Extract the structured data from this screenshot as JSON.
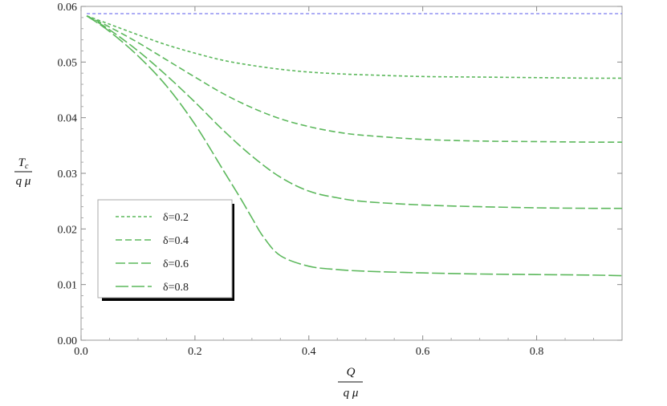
{
  "chart_data": {
    "type": "line",
    "xlabel": {
      "numerator": "Q",
      "denominator": "q μ"
    },
    "ylabel": {
      "numerator": "T",
      "subscript": "c",
      "denominator": "q μ"
    },
    "xlim": [
      0,
      0.95
    ],
    "ylim": [
      0,
      0.06
    ],
    "xticks": [
      "0.0",
      "0.2",
      "0.4",
      "0.6",
      "0.8"
    ],
    "yticks": [
      "0.00",
      "0.01",
      "0.02",
      "0.03",
      "0.04",
      "0.05",
      "0.06"
    ],
    "grid": false,
    "legend": "lower-left",
    "reference_line": {
      "y": 0.0587,
      "color": "#7b7bef"
    },
    "series_color": "#5cb85c",
    "series": [
      {
        "name": "δ=0.2",
        "dash": "4,3",
        "x": [
          0.01,
          0.05,
          0.1,
          0.15,
          0.2,
          0.25,
          0.3,
          0.35,
          0.4,
          0.45,
          0.5,
          0.6,
          0.7,
          0.8,
          0.9,
          0.95
        ],
        "y": [
          0.0583,
          0.0568,
          0.0549,
          0.0531,
          0.0516,
          0.0503,
          0.0494,
          0.0487,
          0.0482,
          0.0479,
          0.0477,
          0.0474,
          0.0473,
          0.0472,
          0.0471,
          0.0471
        ]
      },
      {
        "name": "δ=0.4",
        "dash": "8,4",
        "x": [
          0.01,
          0.05,
          0.1,
          0.15,
          0.2,
          0.25,
          0.3,
          0.35,
          0.4,
          0.45,
          0.5,
          0.6,
          0.7,
          0.8,
          0.9,
          0.95
        ],
        "y": [
          0.0583,
          0.0563,
          0.0535,
          0.0504,
          0.0473,
          0.0443,
          0.0418,
          0.0398,
          0.0384,
          0.0374,
          0.0368,
          0.0361,
          0.0358,
          0.0357,
          0.0356,
          0.0356
        ]
      },
      {
        "name": "δ=0.6",
        "dash": "12,4",
        "x": [
          0.01,
          0.05,
          0.1,
          0.15,
          0.2,
          0.25,
          0.3,
          0.35,
          0.4,
          0.45,
          0.5,
          0.6,
          0.7,
          0.8,
          0.9,
          0.95
        ],
        "y": [
          0.0583,
          0.0558,
          0.052,
          0.0476,
          0.0428,
          0.0377,
          0.0331,
          0.0293,
          0.0268,
          0.0256,
          0.0249,
          0.0243,
          0.024,
          0.0238,
          0.0237,
          0.0237
        ]
      },
      {
        "name": "δ=0.8",
        "dash": "16,4",
        "x": [
          0.01,
          0.05,
          0.1,
          0.15,
          0.2,
          0.25,
          0.28,
          0.3,
          0.32,
          0.35,
          0.4,
          0.45,
          0.5,
          0.6,
          0.7,
          0.8,
          0.9,
          0.95
        ],
        "y": [
          0.0583,
          0.0555,
          0.0511,
          0.0457,
          0.0388,
          0.0305,
          0.0255,
          0.022,
          0.0186,
          0.0152,
          0.0133,
          0.0127,
          0.0124,
          0.0121,
          0.0119,
          0.0118,
          0.0117,
          0.0116
        ]
      }
    ]
  }
}
